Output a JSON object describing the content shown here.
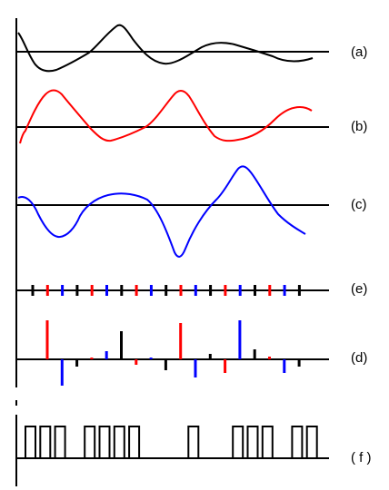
{
  "colors": {
    "black": "#000000",
    "red": "#ff0000",
    "blue": "#0000ff"
  },
  "rows": [
    {
      "key": "a",
      "label": "(a)",
      "color": "#000000",
      "kind": "waveform"
    },
    {
      "key": "b",
      "label": "(b)",
      "color": "#ff0000",
      "kind": "waveform"
    },
    {
      "key": "c",
      "label": "(c)",
      "color": "#0000ff",
      "kind": "waveform"
    },
    {
      "key": "e",
      "label": "(e)",
      "kind": "tick-train"
    },
    {
      "key": "d",
      "label": "(d)",
      "kind": "impulse-train"
    },
    {
      "key": "f",
      "label": "( f )",
      "kind": "pulse-train"
    }
  ],
  "tick_train_colors": [
    "black",
    "red",
    "blue",
    "black",
    "red",
    "blue",
    "black",
    "red",
    "blue",
    "black",
    "red",
    "blue",
    "black",
    "red",
    "blue",
    "black",
    "red",
    "blue",
    "black"
  ],
  "impulse_train": [
    {
      "color": "red",
      "value": 0.43
    },
    {
      "color": "blue",
      "value": -0.29
    },
    {
      "color": "black",
      "value": -0.08
    },
    {
      "color": "red",
      "value": 0.02
    },
    {
      "color": "blue",
      "value": 0.09
    },
    {
      "color": "black",
      "value": 0.31
    },
    {
      "color": "red",
      "value": -0.06
    },
    {
      "color": "blue",
      "value": 0.02
    },
    {
      "color": "black",
      "value": -0.12
    },
    {
      "color": "red",
      "value": 0.4
    },
    {
      "color": "blue",
      "value": -0.2
    },
    {
      "color": "black",
      "value": 0.06
    },
    {
      "color": "red",
      "value": -0.15
    },
    {
      "color": "blue",
      "value": 0.43
    },
    {
      "color": "black",
      "value": 0.11
    },
    {
      "color": "red",
      "value": 0.03
    },
    {
      "color": "blue",
      "value": -0.15
    },
    {
      "color": "black",
      "value": -0.08
    }
  ],
  "pulse_train_bits": [
    1,
    1,
    1,
    0,
    1,
    1,
    1,
    1,
    0,
    0,
    0,
    1,
    0,
    0,
    1,
    1,
    1,
    0,
    1,
    1
  ]
}
